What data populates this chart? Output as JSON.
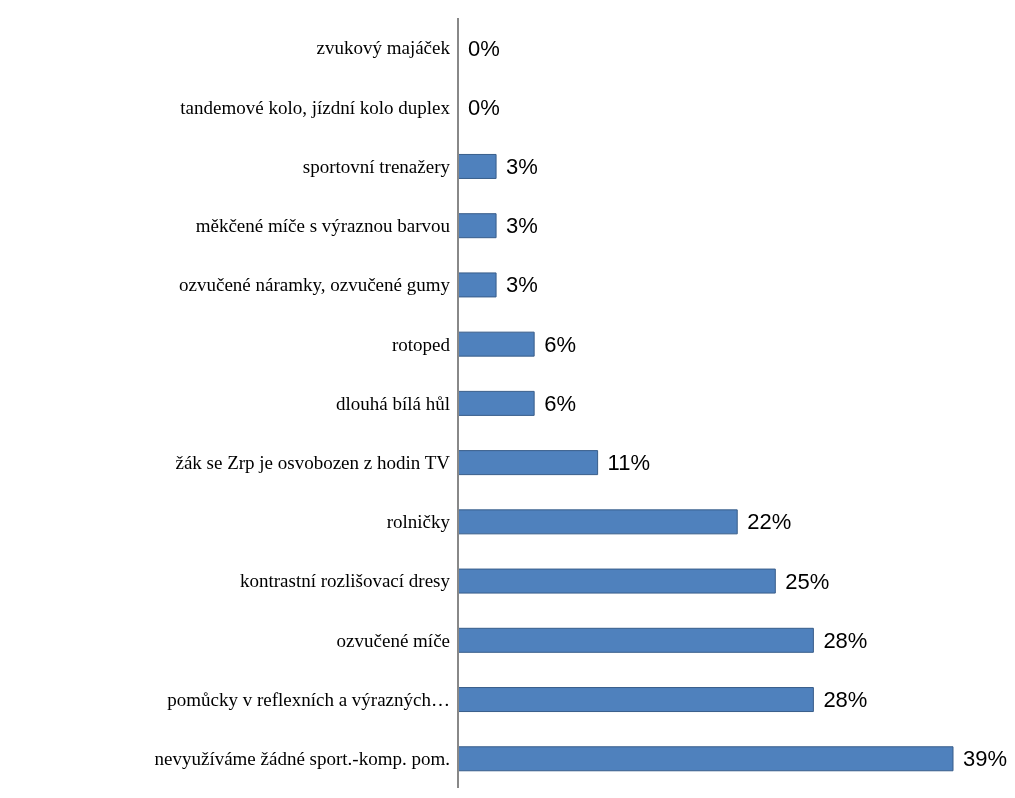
{
  "chart_data": {
    "type": "bar",
    "orientation": "horizontal",
    "categories": [
      "zvukový majáček",
      "tandemové kolo, jízdní kolo duplex",
      "sportovní trenažery",
      "měkčené míče s výraznou barvou",
      "ozvučené náramky, ozvučené gumy",
      "rotoped",
      "dlouhá bílá hůl",
      "žák se Zrp je osvobozen z hodin TV",
      "rolničky",
      "kontrastní rozlišovací dresy",
      "ozvučené míče",
      "pomůcky v reflexních a výrazných…",
      "nevyužíváme žádné sport.-komp. pom."
    ],
    "values": [
      0,
      0,
      3,
      3,
      3,
      6,
      6,
      11,
      22,
      25,
      28,
      28,
      39
    ],
    "value_labels": [
      "0%",
      "0%",
      "3%",
      "3%",
      "3%",
      "6%",
      "6%",
      "11%",
      "22%",
      "25%",
      "28%",
      "28%",
      "39%"
    ],
    "color": "#4f81bd"
  }
}
